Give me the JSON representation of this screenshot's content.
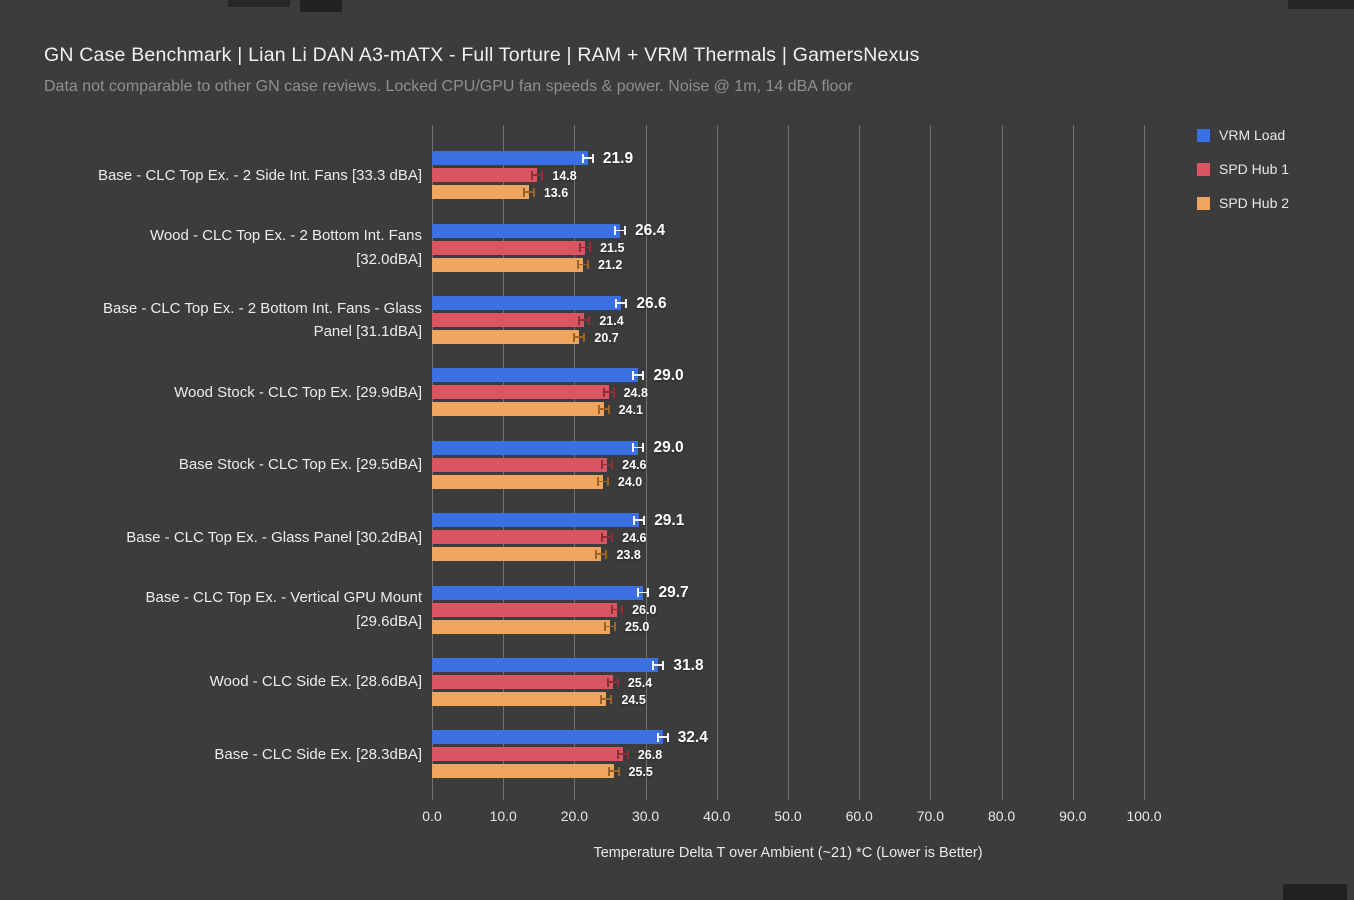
{
  "header": {
    "title": "GN Case Benchmark | Lian Li DAN A3-mATX - Full Torture | RAM + VRM Thermals | GamersNexus",
    "subtitle": "Data not comparable to other GN case reviews. Locked CPU/GPU fan speeds & power. Noise @ 1m, 14 dBA floor"
  },
  "chart_data": {
    "type": "bar",
    "orientation": "horizontal",
    "title": "GN Case Benchmark | Lian Li DAN A3-mATX - Full Torture | RAM + VRM Thermals | GamersNexus",
    "subtitle": "Data not comparable to other GN case reviews. Locked CPU/GPU fan speeds & power. Noise @ 1m, 14 dBA floor",
    "xlabel": "Temperature Delta T over Ambient (~21) *C (Lower is Better)",
    "xlim": [
      0,
      100
    ],
    "xtick_labels": [
      "0.0",
      "10.0",
      "20.0",
      "30.0",
      "40.0",
      "50.0",
      "60.0",
      "70.0",
      "80.0",
      "90.0",
      "100.0"
    ],
    "grid": true,
    "legend_position": "top-right",
    "value_label_decimals": 1,
    "background": "#3c3c3c",
    "categories": [
      "Base - CLC Top Ex. - 2 Side Int. Fans [33.3 dBA]",
      "Wood - CLC Top Ex. - 2 Bottom Int. Fans [32.0dBA]",
      "Base - CLC Top Ex. - 2 Bottom Int. Fans - Glass Panel [31.1dBA]",
      "Wood Stock - CLC Top Ex. [29.9dBA]",
      "Base Stock - CLC Top Ex. [29.5dBA]",
      "Base - CLC Top Ex. - Glass Panel [30.2dBA]",
      "Base - CLC Top Ex. - Vertical GPU Mount [29.6dBA]",
      "Wood - CLC Side Ex. [28.6dBA]",
      "Base - CLC Side Ex. [28.3dBA]"
    ],
    "series": [
      {
        "name": "VRM Load",
        "color": "#3a70e2",
        "error_color": "#f2f5ff",
        "values": [
          21.9,
          26.4,
          26.6,
          29.0,
          29.0,
          29.1,
          29.7,
          31.8,
          32.4
        ]
      },
      {
        "name": "SPD Hub 1",
        "color": "#d85561",
        "error_color": "#8e2f38",
        "values": [
          14.8,
          21.5,
          21.4,
          24.8,
          24.6,
          24.6,
          26.0,
          25.4,
          26.8
        ]
      },
      {
        "name": "SPD Hub 2",
        "color": "#f0a55f",
        "error_color": "#9c6226",
        "values": [
          13.6,
          21.2,
          20.7,
          24.1,
          24.0,
          23.8,
          25.0,
          24.5,
          25.5
        ]
      }
    ]
  }
}
